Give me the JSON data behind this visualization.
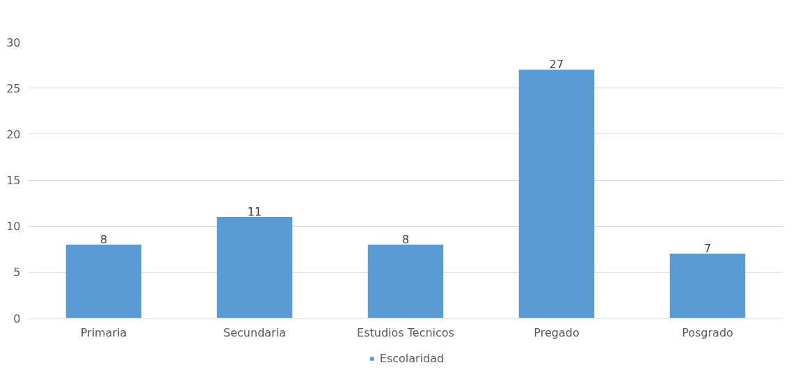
{
  "chart_data": {
    "type": "bar",
    "categories": [
      "Primaria",
      "Secundaria",
      "Estudios Tecnicos",
      "Pregado",
      "Posgrado"
    ],
    "series": [
      {
        "name": "Escolaridad",
        "color": "#5b9bd5",
        "values": [
          8,
          11,
          8,
          27,
          7
        ]
      }
    ],
    "ylim": [
      0,
      30
    ],
    "yticks": [
      0,
      5,
      10,
      15,
      20,
      25,
      30
    ],
    "grid": "y",
    "legend": "bottom",
    "data_labels": true
  }
}
